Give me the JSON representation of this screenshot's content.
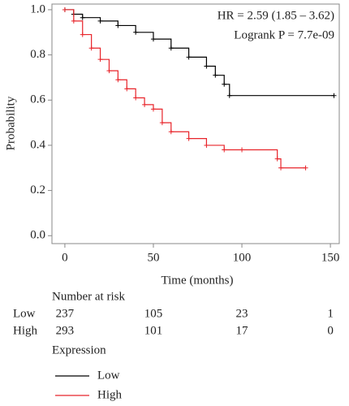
{
  "chart_data": {
    "type": "line",
    "step": true,
    "censor_marks": true,
    "xlabel": "Time (months)",
    "ylabel": "Probability",
    "annotations": [
      "HR = 2.59 (1.85 – 3.62)",
      "Logrank P = 7.7e-09"
    ],
    "xlim": [
      -7.3,
      155
    ],
    "ylim": [
      -0.035,
      1.025
    ],
    "xticks": [
      0,
      50,
      100,
      150
    ],
    "yticks": [
      {
        "value": 0,
        "label": "0.0"
      },
      0.2,
      0.4,
      0.6,
      0.8,
      {
        "value": 1,
        "label": "1.0"
      }
    ],
    "series": [
      {
        "name": "Low",
        "color": "#000000",
        "x": [
          0,
          5,
          10,
          20,
          30,
          40,
          50,
          60,
          70,
          80,
          85,
          90,
          93,
          152
        ],
        "values": [
          1.0,
          0.98,
          0.965,
          0.95,
          0.93,
          0.9,
          0.87,
          0.83,
          0.79,
          0.75,
          0.71,
          0.67,
          0.62,
          0.62
        ]
      },
      {
        "name": "High",
        "color": "#e8242a",
        "x": [
          0,
          5,
          10,
          15,
          20,
          25,
          30,
          35,
          40,
          45,
          50,
          55,
          60,
          70,
          80,
          90,
          100,
          120,
          122,
          136
        ],
        "values": [
          1.0,
          0.95,
          0.89,
          0.83,
          0.78,
          0.73,
          0.69,
          0.65,
          0.61,
          0.58,
          0.56,
          0.5,
          0.46,
          0.43,
          0.4,
          0.38,
          0.38,
          0.34,
          0.3,
          0.3
        ]
      }
    ],
    "risk_table": {
      "title": "Number at risk",
      "rows": [
        {
          "name": "Low",
          "color": "#000000",
          "values": [
            237,
            105,
            23,
            1
          ]
        },
        {
          "name": "High",
          "color": "#e8242a",
          "values": [
            293,
            101,
            17,
            0
          ]
        }
      ]
    },
    "legend_title": "Expression"
  }
}
